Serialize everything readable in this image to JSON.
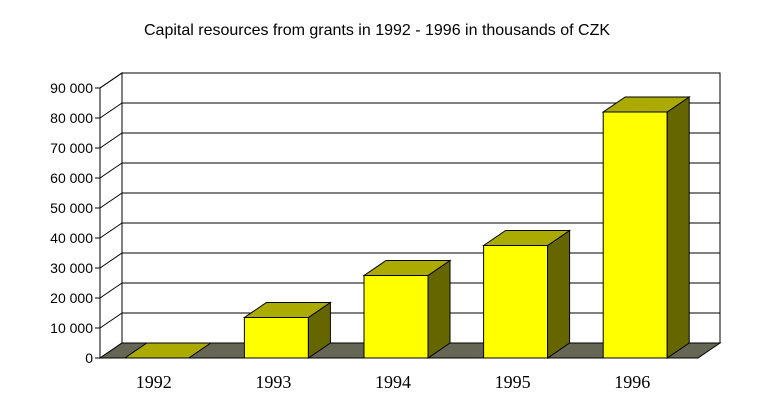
{
  "chart_data": {
    "type": "bar",
    "title": "Capital resources from grants in 1992 - 1996 in thousands of CZK",
    "categories": [
      "1992",
      "1993",
      "1994",
      "1995",
      "1996"
    ],
    "values": [
      0,
      13500,
      27500,
      37500,
      82000
    ],
    "ylim": [
      0,
      90000
    ],
    "yticks": [
      "0",
      "10 000",
      "20 000",
      "30 000",
      "40 000",
      "50 000",
      "60 000",
      "70 000",
      "80 000",
      "90 000"
    ],
    "xlabel": "",
    "ylabel": "",
    "grid": true,
    "legend": "none",
    "colors": {
      "bar_front": "#ffff00",
      "bar_top": "#aaaa00",
      "bar_side": "#666600",
      "floor": "#666655"
    }
  }
}
